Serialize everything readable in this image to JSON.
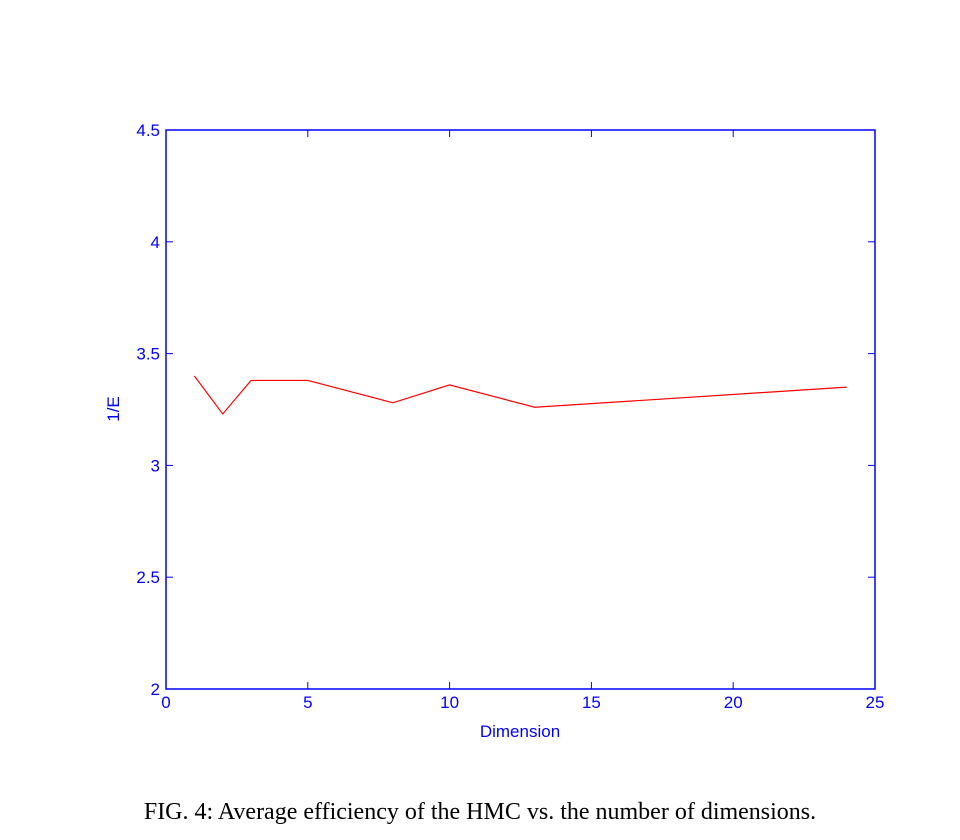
{
  "chart_data": {
    "type": "line",
    "title": "",
    "xlabel": "Dimension",
    "ylabel": "1/E",
    "xlim": [
      0,
      25
    ],
    "ylim": [
      2,
      4.5
    ],
    "xticks": [
      0,
      5,
      10,
      15,
      20,
      25
    ],
    "yticks": [
      2,
      2.5,
      3,
      3.5,
      4,
      4.5
    ],
    "xtick_labels": [
      "0",
      "5",
      "10",
      "15",
      "20",
      "25"
    ],
    "ytick_labels": [
      "2",
      "2.5",
      "3",
      "3.5",
      "4",
      "4.5"
    ],
    "grid": false,
    "axis_color": "#0000ff",
    "series": [
      {
        "color": "#ff0000",
        "x": [
          1,
          2,
          3,
          5,
          8,
          10,
          13,
          24
        ],
        "y": [
          3.4,
          3.23,
          3.38,
          3.38,
          3.28,
          3.36,
          3.26,
          3.35
        ]
      }
    ]
  },
  "caption": "FIG. 4: Average efficiency of the HMC vs. the number of dimensions."
}
